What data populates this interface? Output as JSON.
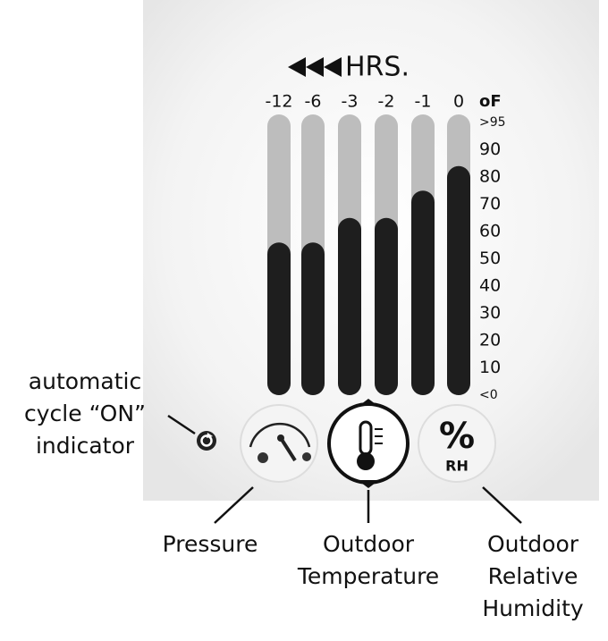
{
  "chart_data": {
    "type": "bar",
    "title": "HRS.",
    "unit": "oF",
    "categories": [
      "-12",
      "-6",
      "-3",
      "-2",
      "-1",
      "0"
    ],
    "values": [
      56,
      56,
      65,
      65,
      75,
      84
    ],
    "color": "#1e1e1e",
    "track_color": "#bdbdbd",
    "ylim": [
      0,
      100
    ],
    "yticks": [
      {
        "value": 0,
        "label": "<0"
      },
      10,
      20,
      30,
      40,
      50,
      60,
      70,
      80,
      90,
      {
        "value": 100,
        "label": ">95"
      }
    ]
  },
  "icons": {
    "humidity_symbol": "%",
    "humidity_unit": "RH"
  },
  "callouts": {
    "cycle_indicator": [
      "automatic",
      "cycle “ON”",
      "indicator"
    ],
    "pressure": [
      "Pressure"
    ],
    "outdoor_temperature": [
      "Outdoor",
      "Temperature"
    ],
    "outdoor_humidity": [
      "Outdoor",
      "Relative",
      "Humidity"
    ]
  }
}
